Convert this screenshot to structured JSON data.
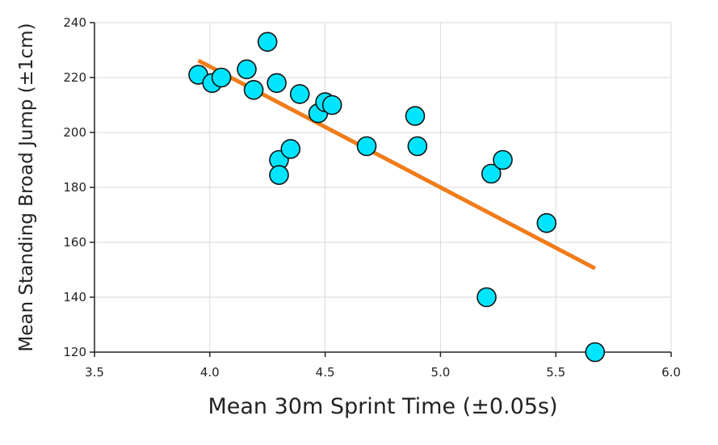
{
  "chart_data": {
    "type": "scatter",
    "title": "",
    "xlabel": "Mean 30m Sprint Time (±0.05s)",
    "ylabel": "Mean Standing Broad Jump (±1cm)",
    "xlim": [
      3.5,
      6.0
    ],
    "ylim": [
      120,
      240
    ],
    "xticks": [
      "3.5",
      "4.0",
      "4.5",
      "5.0",
      "5.5",
      "6.0"
    ],
    "yticks": [
      "120",
      "140",
      "160",
      "180",
      "200",
      "220",
      "240"
    ],
    "grid": true,
    "legend": "none",
    "colors": {
      "points": "#00e5ff",
      "point_edge": "#111111",
      "trendline": "#f07c1a",
      "grid": "#d9d9d9",
      "axis": "#222222"
    },
    "series": [
      {
        "points": [
          [
            3.95,
            221
          ],
          [
            4.01,
            218
          ],
          [
            4.05,
            220
          ],
          [
            4.16,
            223
          ],
          [
            4.19,
            215.5
          ],
          [
            4.25,
            233
          ],
          [
            4.29,
            218
          ],
          [
            4.3,
            190
          ],
          [
            4.3,
            184.5
          ],
          [
            4.35,
            194
          ],
          [
            4.39,
            214
          ],
          [
            4.47,
            207
          ],
          [
            4.5,
            211
          ],
          [
            4.53,
            210
          ],
          [
            4.68,
            195
          ],
          [
            4.89,
            206
          ],
          [
            4.9,
            195
          ],
          [
            5.2,
            140
          ],
          [
            5.22,
            185
          ],
          [
            5.27,
            190
          ],
          [
            5.46,
            167
          ],
          [
            5.67,
            120
          ]
        ]
      }
    ],
    "trendline": {
      "x": [
        3.95,
        5.67
      ],
      "y": [
        226.2,
        150.5
      ]
    }
  }
}
